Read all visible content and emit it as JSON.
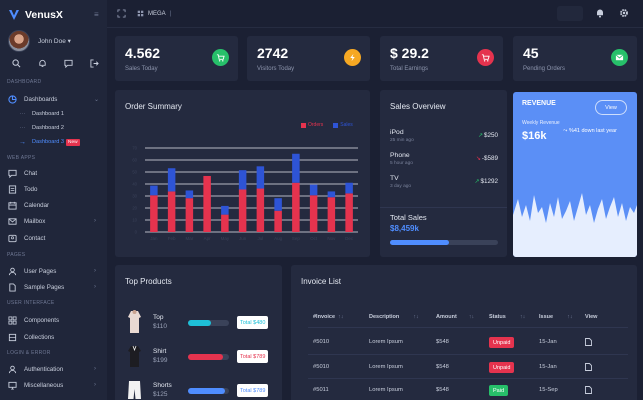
{
  "app": {
    "name": "VenusX"
  },
  "user": {
    "name": "John Doe ▾"
  },
  "sidebar": {
    "sections": [
      "DASHBOARD",
      "WEB APPS",
      "PAGES",
      "USER INTERFACE",
      "LOGIN & ERROR"
    ],
    "dashboards": "Dashboards",
    "subs": [
      "Dashboard 1",
      "Dashboard 2",
      "Dashboard 3"
    ],
    "new_badge": "New",
    "webapps": [
      "Chat",
      "Todo",
      "Calendar",
      "Mailbox",
      "Contact"
    ],
    "pages": [
      "User Pages",
      "Sample Pages"
    ],
    "ui": [
      "Components",
      "Collections"
    ],
    "login": [
      "Authentication",
      "Miscellaneous"
    ]
  },
  "topbar": {
    "mega": "MEGA"
  },
  "stats": [
    {
      "value": "4.562",
      "label": "Sales Today",
      "color": "#27c06a",
      "icon": "cart-icon"
    },
    {
      "value": "2742",
      "label": "Visitors Today",
      "color": "#f6a823",
      "icon": "bolt-icon"
    },
    {
      "value": "$ 29.2",
      "label": "Total Earnings",
      "color": "#e5334e",
      "icon": "cart-icon"
    },
    {
      "value": "45",
      "label": "Pending Orders",
      "color": "#27c06a",
      "icon": "mail-icon"
    }
  ],
  "order_summary": {
    "title": "Order Summary",
    "legend": [
      "Orders",
      "Sales"
    ]
  },
  "chart_data": {
    "type": "bar",
    "stacked": true,
    "categories": [
      "Jan",
      "Feb",
      "Mar",
      "Apr",
      "May",
      "Jun",
      "Jul",
      "Aug",
      "Sep",
      "Oct",
      "Nov",
      "Dec"
    ],
    "series": [
      {
        "name": "Orders",
        "values": [
          38,
          42,
          35,
          58,
          18,
          44,
          45,
          22,
          51,
          38,
          36,
          40
        ],
        "color": "#e5334e"
      },
      {
        "name": "Sales",
        "values": [
          10,
          24,
          8,
          0,
          9,
          20,
          23,
          13,
          30,
          11,
          6,
          11
        ],
        "color": "#2e54d6"
      }
    ],
    "ylim": [
      0,
      100
    ],
    "grid": true,
    "legend": "top-right"
  },
  "sales_overview": {
    "title": "Sales Overview",
    "items": [
      {
        "name": "iPod",
        "time": "25 min ago",
        "arrow": "↗",
        "value": "$250",
        "color": "#27c06a"
      },
      {
        "name": "Phone",
        "time": "5 hour ago",
        "arrow": "↘",
        "value": "-$589",
        "color": "#e5334e"
      },
      {
        "name": "TV",
        "time": "3 day ago",
        "arrow": "↗",
        "value": "$1292",
        "color": "#27c06a"
      }
    ],
    "total_label": "Total Sales",
    "total_value": "$8,459k",
    "progress": 0.55
  },
  "revenue": {
    "title": "REVENUE",
    "view": "View",
    "subtitle": "Weekly Revenue",
    "value": "$16k",
    "change": "%41 down last year"
  },
  "top_products": {
    "title": "Top Products",
    "items": [
      {
        "name": "Top",
        "price": "$110",
        "total": "Total $480",
        "progress": 0.55,
        "color": "#1ec0d8",
        "total_color": "#1ec0d8"
      },
      {
        "name": "Shirt",
        "price": "$199",
        "total": "Total $789",
        "progress": 0.85,
        "color": "#e5334e",
        "total_color": "#e5334e"
      },
      {
        "name": "Shorts",
        "price": "$125",
        "total": "Total $789",
        "progress": 0.9,
        "color": "#4f8dff",
        "total_color": "#4f8dff"
      }
    ]
  },
  "invoice": {
    "title": "Invoice List",
    "columns": [
      "#Invoice",
      "Description",
      "Amount",
      "Status",
      "Issue",
      "View"
    ],
    "rows": [
      {
        "invoice": "#5010",
        "description": "Lorem Ipsum",
        "amount": "$548",
        "status": "Unpaid",
        "status_color": "#e5334e",
        "issue": "15-Jan"
      },
      {
        "invoice": "#5010",
        "description": "Lorem Ipsum",
        "amount": "$548",
        "status": "Unpaid",
        "status_color": "#e5334e",
        "issue": "15-Jan"
      },
      {
        "invoice": "#5011",
        "description": "Lorem Ipsum",
        "amount": "$548",
        "status": "Paid",
        "status_color": "#27c06a",
        "issue": "15-Sep"
      }
    ]
  }
}
